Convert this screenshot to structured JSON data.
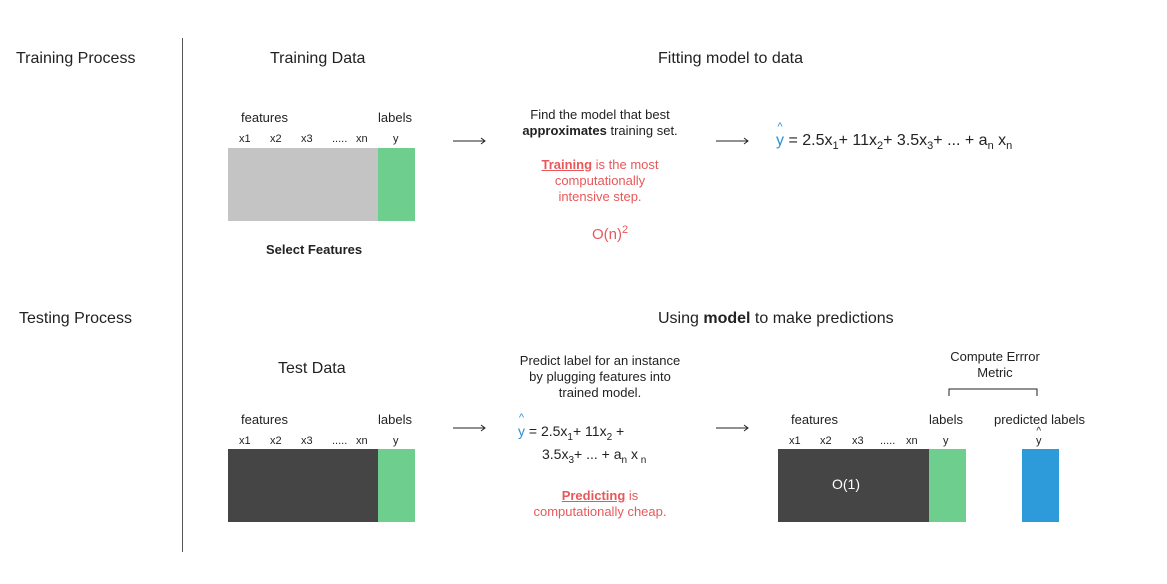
{
  "sections": {
    "training": "Training Process",
    "testing": "Testing Process"
  },
  "training": {
    "data_title": "Training Data",
    "fit_title": "Fitting model to data",
    "features_label": "features",
    "labels_label": "labels",
    "columns": [
      "x1",
      "x2",
      "x3",
      ".....",
      "xn",
      "y"
    ],
    "select_features": "Select Features",
    "desc_line1": "Find the model that best",
    "desc_bold": "approximates",
    "desc_rest": " training set.",
    "note_bold": "Training",
    "note_rest": " is the most",
    "note_line2": "computationally",
    "note_line3": "intensive step.",
    "complexity_base": "O(n)",
    "complexity_exp": "2",
    "formula": {
      "yhat": "y",
      "caret": "^",
      "eq": " = 2.5x",
      "s1": "1",
      "p2": "+ 11x",
      "s2": "2",
      "p3": "+ 3.5x",
      "s3": "3",
      "p4": "+ ... + a",
      "sn": "n",
      "p5": " x",
      "sn2": "n"
    }
  },
  "testing": {
    "data_title": "Test Data",
    "use_prefix": "Using ",
    "use_bold": "model",
    "use_suffix": " to make predictions",
    "features_label": "features",
    "labels_label": "labels",
    "columns": [
      "x1",
      "x2",
      "x3",
      ".....",
      "xn",
      "y"
    ],
    "desc_line1": "Predict label for an instance",
    "desc_line2": "by plugging features into",
    "desc_line3": "trained model.",
    "formula_line1": {
      "yhat": "y",
      "caret": "^",
      "eq": " = 2.5x",
      "s1": "1",
      "p2": "+ 11x",
      "s2": "2",
      "p3": " +"
    },
    "formula_line2": {
      "a": "3.5x",
      "s3": "3",
      "b": "+ ... + a",
      "sn": "n",
      "c": " x",
      "sn2": " n"
    },
    "note_bold": "Predicting",
    "note_rest": " is",
    "note_line2": "computationally cheap.",
    "error_metric_line1": "Compute Errror",
    "error_metric_line2": "Metric",
    "result_features": "features",
    "result_labels": "labels",
    "predicted_labels": "predicted labels",
    "result_columns": [
      "x1",
      "x2",
      "x3",
      ".....",
      "xn",
      "y"
    ],
    "pred_col_caret": "^",
    "pred_col": "y",
    "complexity": "O(1)"
  },
  "colors": {
    "train_block": "#c4c4c4",
    "test_block": "#454545",
    "label_green": "#6dce8e",
    "pred_blue": "#2d9ad9",
    "accent_red": "#e8585b",
    "accent_blue": "#2d8fd6"
  }
}
